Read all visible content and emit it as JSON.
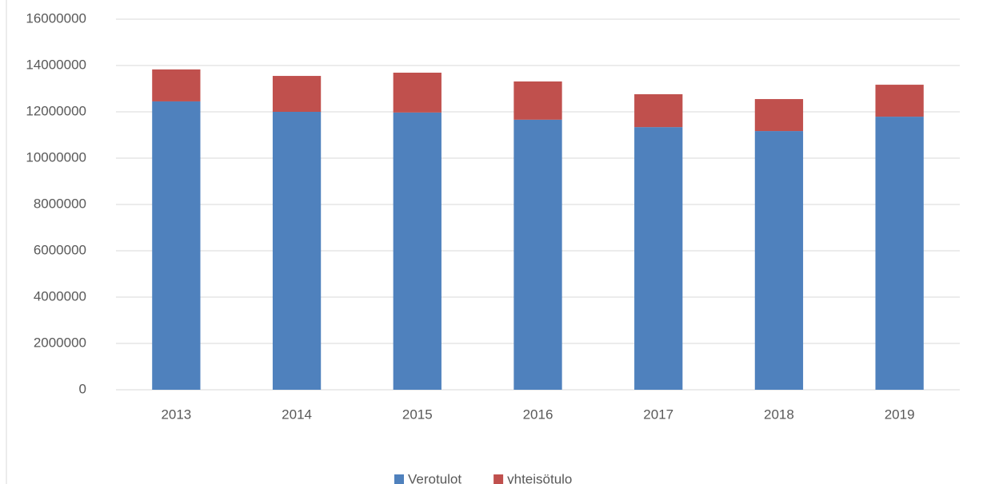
{
  "chart_data": {
    "type": "stacked_bar",
    "categories": [
      "2013",
      "2014",
      "2015",
      "2016",
      "2017",
      "2018",
      "2019"
    ],
    "series": [
      {
        "name": "Verotulot",
        "color": "#4f81bd",
        "values": [
          12450000,
          12000000,
          11970000,
          11660000,
          11340000,
          11170000,
          11790000
        ]
      },
      {
        "name": "yhteisötulo",
        "color": "#c0504d",
        "values": [
          1380000,
          1550000,
          1720000,
          1650000,
          1420000,
          1380000,
          1380000
        ]
      }
    ],
    "ylim": [
      0,
      16000000
    ],
    "yticks": [
      0,
      2000000,
      4000000,
      6000000,
      8000000,
      10000000,
      12000000,
      14000000,
      16000000
    ],
    "grid": true,
    "legend": "bottom"
  }
}
